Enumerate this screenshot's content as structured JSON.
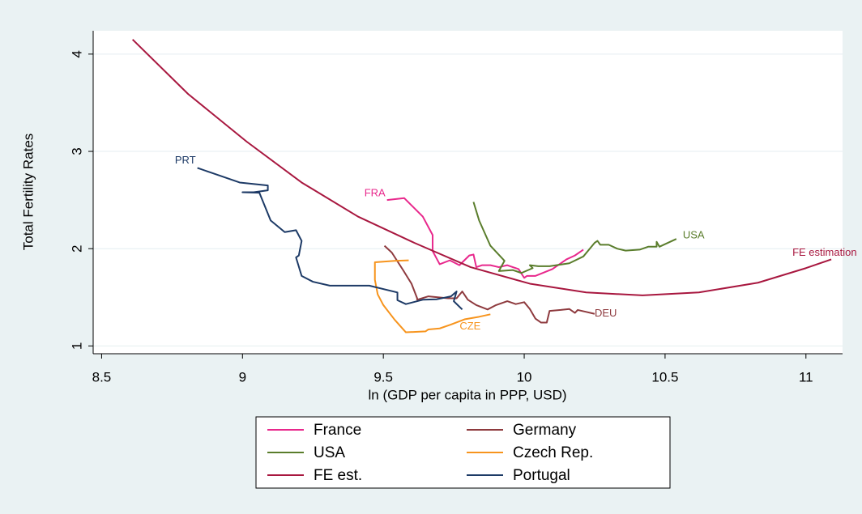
{
  "chart_data": {
    "type": "line",
    "x_label": "ln (GDP per capita in PPP, USD)",
    "y_label": "Total Fertility Rates",
    "xlim": [
      8.47,
      11.13
    ],
    "ylim": [
      0.92,
      4.24
    ],
    "xticks": [
      8.5,
      9,
      9.5,
      10,
      10.5,
      11
    ],
    "yticks": [
      1,
      2,
      3,
      4
    ],
    "grid": true,
    "series": [
      {
        "name": "France",
        "label": "FRA",
        "color": "#e8288c",
        "x": [
          9.513,
          9.574,
          9.64,
          9.675,
          9.675,
          9.7,
          9.736,
          9.77,
          9.805,
          9.82,
          9.83,
          9.85,
          9.88,
          9.91,
          9.94,
          9.98,
          10.0,
          10.01,
          10.04,
          10.1,
          10.15,
          10.18,
          10.21
        ],
        "values": [
          2.5,
          2.52,
          2.33,
          2.14,
          1.975,
          1.84,
          1.88,
          1.83,
          1.93,
          1.94,
          1.81,
          1.83,
          1.83,
          1.81,
          1.83,
          1.79,
          1.7,
          1.72,
          1.72,
          1.79,
          1.89,
          1.93,
          1.99
        ]
      },
      {
        "name": "Germany",
        "label": "DEU",
        "color": "#8e3a3e",
        "x": [
          9.504,
          9.53,
          9.57,
          9.6,
          9.62,
          9.62,
          9.66,
          9.73,
          9.76,
          9.78,
          9.8,
          9.83,
          9.87,
          9.9,
          9.94,
          9.97,
          10.0,
          10.02,
          10.04,
          10.06,
          10.08,
          10.09,
          10.13,
          10.16,
          10.18,
          10.19,
          10.22,
          10.25
        ],
        "values": [
          2.03,
          1.96,
          1.78,
          1.64,
          1.49,
          1.475,
          1.51,
          1.49,
          1.49,
          1.56,
          1.475,
          1.42,
          1.375,
          1.42,
          1.46,
          1.43,
          1.45,
          1.38,
          1.28,
          1.24,
          1.24,
          1.36,
          1.37,
          1.38,
          1.34,
          1.37,
          1.35,
          1.33
        ]
      },
      {
        "name": "USA",
        "label": "USA",
        "color": "#5a7d2c",
        "x": [
          9.82,
          9.84,
          9.88,
          9.93,
          9.91,
          9.96,
          9.99,
          10.03,
          10.02,
          10.05,
          10.09,
          10.16,
          10.21,
          10.25,
          10.26,
          10.27,
          10.3,
          10.33,
          10.36,
          10.41,
          10.44,
          10.47,
          10.47,
          10.48,
          10.54
        ],
        "values": [
          2.48,
          2.29,
          2.03,
          1.875,
          1.77,
          1.78,
          1.75,
          1.8,
          1.83,
          1.82,
          1.82,
          1.85,
          1.92,
          2.06,
          2.08,
          2.04,
          2.04,
          2.0,
          1.98,
          1.99,
          2.02,
          2.02,
          2.07,
          2.02,
          2.1
        ]
      },
      {
        "name": "Czech Rep.",
        "label": "CZE",
        "color": "#f7941d",
        "x": [
          9.59,
          9.54,
          9.47,
          9.47,
          9.48,
          9.5,
          9.54,
          9.58,
          9.65,
          9.66,
          9.7,
          9.74,
          9.79,
          9.84,
          9.88
        ],
        "values": [
          1.88,
          1.875,
          1.86,
          1.68,
          1.53,
          1.42,
          1.27,
          1.14,
          1.15,
          1.17,
          1.18,
          1.22,
          1.275,
          1.3,
          1.325
        ]
      },
      {
        "name": "FE est.",
        "label": "FE estimation",
        "color": "#a8173f",
        "x": [
          8.61,
          8.807,
          9.015,
          9.21,
          9.41,
          9.61,
          9.81,
          10.02,
          10.22,
          10.42,
          10.62,
          10.83,
          11.0,
          11.09
        ],
        "values": [
          4.15,
          3.59,
          3.1,
          2.68,
          2.33,
          2.06,
          1.81,
          1.64,
          1.55,
          1.52,
          1.55,
          1.65,
          1.8,
          1.89
        ]
      },
      {
        "name": "Portugal",
        "label": "PRT",
        "color": "#1d3a66",
        "x": [
          8.84,
          8.89,
          8.99,
          9.09,
          9.09,
          9.04,
          9.0,
          9.06,
          9.1,
          9.15,
          9.19,
          9.21,
          9.2,
          9.19,
          9.21,
          9.25,
          9.31,
          9.45,
          9.55,
          9.55,
          9.58,
          9.64,
          9.69,
          9.74,
          9.76,
          9.75,
          9.78
        ],
        "values": [
          2.83,
          2.78,
          2.68,
          2.65,
          2.6,
          2.58,
          2.58,
          2.575,
          2.29,
          2.17,
          2.19,
          2.08,
          1.93,
          1.91,
          1.72,
          1.66,
          1.62,
          1.62,
          1.55,
          1.47,
          1.43,
          1.475,
          1.48,
          1.51,
          1.56,
          1.46,
          1.375
        ]
      }
    ]
  }
}
